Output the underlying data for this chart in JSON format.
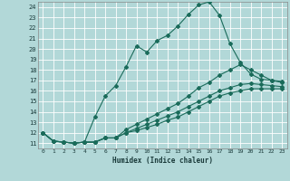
{
  "xlabel": "Humidex (Indice chaleur)",
  "bg_color": "#b2d8d8",
  "grid_color": "#ffffff",
  "line_color": "#1a6b5a",
  "marker": "D",
  "markersize": 2.0,
  "linewidth": 0.8,
  "xlim": [
    -0.5,
    23.5
  ],
  "ylim": [
    10.5,
    24.5
  ],
  "xticks": [
    0,
    1,
    2,
    3,
    4,
    5,
    6,
    7,
    8,
    9,
    10,
    11,
    12,
    13,
    14,
    15,
    16,
    17,
    18,
    19,
    20,
    21,
    22,
    23
  ],
  "yticks": [
    11,
    12,
    13,
    14,
    15,
    16,
    17,
    18,
    19,
    20,
    21,
    22,
    23,
    24
  ],
  "series": [
    [
      12.0,
      11.2,
      11.1,
      11.0,
      11.1,
      13.5,
      15.5,
      16.5,
      18.3,
      20.3,
      19.7,
      20.8,
      21.3,
      22.2,
      23.3,
      24.2,
      24.5,
      23.2,
      20.5,
      18.7,
      17.6,
      17.1,
      17.0,
      16.9
    ],
    [
      12.0,
      11.2,
      11.1,
      11.0,
      11.1,
      11.1,
      11.5,
      11.5,
      12.3,
      12.8,
      13.3,
      13.8,
      14.3,
      14.8,
      15.5,
      16.3,
      16.8,
      17.5,
      18.0,
      18.5,
      18.0,
      17.5,
      17.0,
      16.8
    ],
    [
      12.0,
      11.2,
      11.1,
      11.0,
      11.1,
      11.1,
      11.5,
      11.5,
      12.0,
      12.4,
      12.8,
      13.2,
      13.6,
      14.0,
      14.5,
      15.0,
      15.5,
      16.0,
      16.3,
      16.6,
      16.7,
      16.6,
      16.5,
      16.4
    ],
    [
      12.0,
      11.2,
      11.1,
      11.0,
      11.1,
      11.1,
      11.5,
      11.5,
      12.0,
      12.2,
      12.5,
      12.8,
      13.2,
      13.5,
      14.0,
      14.5,
      15.0,
      15.5,
      15.8,
      16.0,
      16.2,
      16.2,
      16.2,
      16.2
    ]
  ]
}
